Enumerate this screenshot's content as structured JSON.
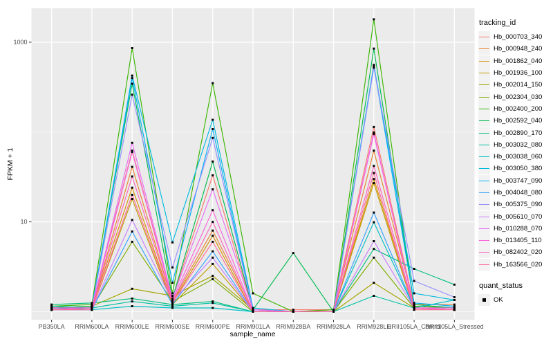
{
  "figure": {
    "y_axis_title": "FPKM + 1",
    "x_axis_title": "sample_name",
    "theme": {
      "panel_bg": "#EBEBEB",
      "grid_color": "#FFFFFF",
      "tick_text_color": "#4D4D4D",
      "tick_mark_color": "#333333",
      "point_color": "#000000",
      "legend_key_bg": "#F2F2F2"
    }
  },
  "legend": {
    "tracking_title": "tracking_id",
    "quant_title": "quant_status",
    "quant_items": [
      {
        "label": "OK",
        "marker": "black-filled-square"
      }
    ]
  },
  "chart_data": {
    "type": "line",
    "x_type": "categorical",
    "y_scale": "log10",
    "xlabel": "sample_name",
    "ylabel": "FPKM + 1",
    "grid": true,
    "legend_position": "right",
    "point_shape": "filled-square-black",
    "quant_status": "OK",
    "y_ticks": [
      {
        "label": "1000",
        "value": 1000
      },
      {
        "label": "10",
        "value": 10
      }
    ],
    "y_minor": [
      100,
      1
    ],
    "categories": [
      "PB350LA",
      "RRIM600LA",
      "RRIM600LE",
      "RRIM600SE",
      "RRIM600PE",
      "RRIM901LA",
      "RRIM928BA",
      "RRIM928LA",
      "RRIM928LE",
      "RRII105LA_Control",
      "RRII105LA_Stressed"
    ],
    "series": [
      {
        "name": "Hb_000703_340",
        "color": "#F8766D",
        "values": [
          1.1,
          1.15,
          62,
          1.4,
          33,
          1.05,
          1.05,
          1.05,
          114,
          1.15,
          1.1
        ]
      },
      {
        "name": "Hb_000948_240",
        "color": "#EA8331",
        "values": [
          1.05,
          1.1,
          41,
          1.3,
          8.0,
          1.05,
          1.0,
          1.05,
          62,
          1.2,
          1.2
        ]
      },
      {
        "name": "Hb_001862_040",
        "color": "#D89000",
        "values": [
          1.05,
          1.1,
          24,
          1.25,
          7.0,
          1.0,
          1.0,
          1.0,
          30,
          1.1,
          1.1
        ]
      },
      {
        "name": "Hb_001936_100",
        "color": "#C09B00",
        "values": [
          1.05,
          1.05,
          18,
          1.2,
          3.4,
          1.0,
          1.0,
          1.0,
          27,
          1.05,
          1.05
        ]
      },
      {
        "name": "Hb_002014_150",
        "color": "#A3A500",
        "values": [
          1.1,
          1.15,
          1.8,
          1.5,
          2.5,
          1.05,
          1.0,
          1.0,
          2.1,
          1.1,
          1.05
        ]
      },
      {
        "name": "Hb_002304_030",
        "color": "#7CAE00",
        "values": [
          1.1,
          1.1,
          6.0,
          1.3,
          2.3,
          1.0,
          1.0,
          1.0,
          4.0,
          1.1,
          1.05
        ]
      },
      {
        "name": "Hb_002400_200",
        "color": "#39B600",
        "values": [
          1.15,
          1.2,
          860,
          1.6,
          350,
          1.6,
          1.0,
          1.05,
          1800,
          1.15,
          1.1
        ]
      },
      {
        "name": "Hb_002592_040",
        "color": "#00BB4E",
        "values": [
          1.1,
          1.15,
          345,
          1.4,
          47,
          1.05,
          4.5,
          1.0,
          850,
          1.2,
          1.1
        ]
      },
      {
        "name": "Hb_002890_170",
        "color": "#00BF7D",
        "values": [
          1.2,
          1.25,
          1.4,
          1.2,
          1.3,
          1.0,
          1.0,
          1.0,
          5.0,
          3.0,
          2.0
        ]
      },
      {
        "name": "Hb_003032_080",
        "color": "#00C1A3",
        "values": [
          1.15,
          1.1,
          1.3,
          1.15,
          1.25,
          1.0,
          1.0,
          1.0,
          1.5,
          1.1,
          1.05
        ]
      },
      {
        "name": "Hb_003038_060",
        "color": "#00BFC4",
        "values": [
          1.1,
          1.05,
          1.15,
          1.1,
          1.1,
          1.0,
          1.0,
          1.0,
          9.9,
          1.1,
          1.35
        ]
      },
      {
        "name": "Hb_003050_380",
        "color": "#00BAE0",
        "values": [
          1.05,
          1.1,
          425,
          5.9,
          137,
          1.1,
          1.0,
          1.0,
          560,
          1.6,
          1.35
        ]
      },
      {
        "name": "Hb_003747_090",
        "color": "#00B0F6",
        "values": [
          1.05,
          1.1,
          400,
          2.1,
          108,
          1.05,
          1.0,
          1.0,
          540,
          1.25,
          1.15
        ]
      },
      {
        "name": "Hb_004048_080",
        "color": "#35A2FF",
        "values": [
          1.05,
          1.05,
          7.8,
          1.2,
          4.7,
          1.0,
          1.0,
          1.0,
          12.7,
          1.1,
          1.05
        ]
      },
      {
        "name": "Hb_005375_090",
        "color": "#9590FF",
        "values": [
          1.05,
          1.1,
          260,
          3.1,
          86,
          1.05,
          1.0,
          1.0,
          520,
          2.2,
          1.45
        ]
      },
      {
        "name": "Hb_005610_070",
        "color": "#C77CFF",
        "values": [
          1.05,
          1.05,
          10.5,
          1.3,
          4.0,
          1.0,
          1.0,
          1.0,
          6.1,
          1.1,
          1.05
        ]
      },
      {
        "name": "Hb_010288_070",
        "color": "#E76BF3",
        "values": [
          1.1,
          1.1,
          76,
          1.4,
          23,
          1.05,
          1.0,
          1.0,
          99,
          1.1,
          1.1
        ]
      },
      {
        "name": "Hb_013405_110",
        "color": "#FA62DB",
        "values": [
          1.1,
          1.1,
          60,
          1.35,
          13.5,
          1.0,
          1.0,
          1.0,
          95,
          1.1,
          1.05
        ]
      },
      {
        "name": "Hb_082402_020",
        "color": "#FF62BC",
        "values": [
          1.05,
          1.1,
          32,
          1.3,
          10,
          1.0,
          1.0,
          1.0,
          42,
          1.1,
          1.05
        ]
      },
      {
        "name": "Hb_163566_020",
        "color": "#FF6A98",
        "values": [
          1.05,
          1.05,
          20,
          1.25,
          6.0,
          1.0,
          1.0,
          1.0,
          35,
          1.05,
          1.05
        ]
      }
    ]
  }
}
